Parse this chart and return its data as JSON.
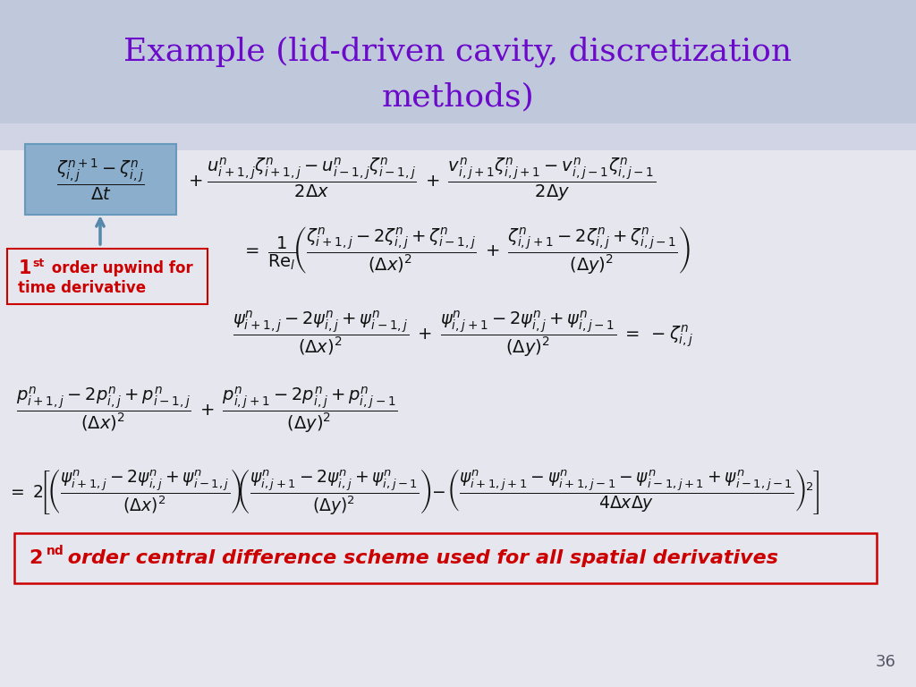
{
  "title_line1": "Example (lid-driven cavity, discretization",
  "title_line2": "methods)",
  "title_color": "#6B0AC9",
  "bg_color": "#E6E6EE",
  "header_bg_top": "#C8C8DC",
  "header_bg_bottom": "#D0D0E0",
  "math_color": "#111111",
  "label_color": "#CC0000",
  "box1_bg": "#8AAECC",
  "box1_border": "#6699BB",
  "label_box_bg": "#E6E6EE",
  "page_number": "36",
  "fs_title": 26,
  "fs_eq": 14
}
